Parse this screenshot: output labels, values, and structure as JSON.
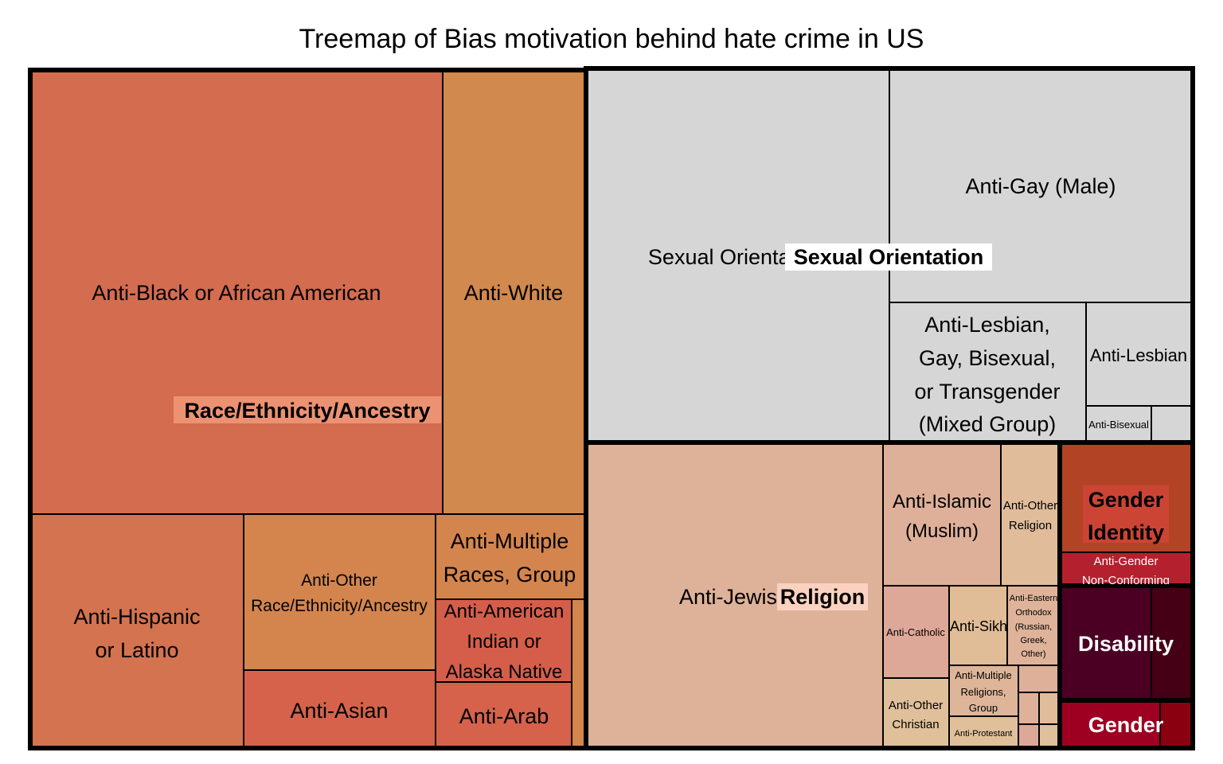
{
  "chart_data": {
    "type": "treemap",
    "title": "Treemap of Bias motivation behind hate crime in US",
    "groups": [
      {
        "name": "Race/Ethnicity/Ancestry",
        "label_color": "#ec9272",
        "children": [
          {
            "name": "Anti-Black or African American",
            "color": "#d46c50"
          },
          {
            "name": "Anti-White",
            "color": "#d1894d"
          },
          {
            "name": "Anti-Hispanic or Latino",
            "color": "#d47350"
          },
          {
            "name": "Anti-Other Race/Ethnicity/Ancestry",
            "color": "#d4854e"
          },
          {
            "name": "Anti-Multiple Races, Group",
            "color": "#d4854e"
          },
          {
            "name": "Anti-Asian",
            "color": "#d6624c"
          },
          {
            "name": "Anti-American Indian or Alaska Native",
            "color": "#d55e4a"
          },
          {
            "name": "Anti-Arab",
            "color": "#d6624c"
          }
        ]
      },
      {
        "name": "Sexual Orientation",
        "label_color": "#ffffff",
        "children": [
          {
            "name": "Sexual Orientation",
            "color": "#d6d6d6"
          },
          {
            "name": "Anti-Gay (Male)",
            "color": "#d6d6d6"
          },
          {
            "name": "Anti-Lesbian, Gay, Bisexual, or Transgender (Mixed Group)",
            "color": "#d6d6d6"
          },
          {
            "name": "Anti-Lesbian",
            "color": "#d6d6d6"
          },
          {
            "name": "Anti-Bisexual",
            "color": "#d6d6d6"
          }
        ]
      },
      {
        "name": "Religion",
        "label_color": "#fbd2c0",
        "children": [
          {
            "name": "Anti-Jewish",
            "color": "#deb299"
          },
          {
            "name": "Anti-Islamic (Muslim)",
            "color": "#deb099"
          },
          {
            "name": "Anti-Other Religion",
            "color": "#e0bc9a"
          },
          {
            "name": "Anti-Catholic",
            "color": "#dea899"
          },
          {
            "name": "Anti-Sikh",
            "color": "#e0bc97"
          },
          {
            "name": "Anti-Eastern Orthodox (Russian, Greek, Other)",
            "color": "#deb399"
          },
          {
            "name": "Anti-Other Christian",
            "color": "#e0c09a"
          },
          {
            "name": "Anti-Multiple Religions, Group",
            "color": "#deb599"
          },
          {
            "name": "Anti-Protestant",
            "color": "#e0c09a"
          }
        ]
      },
      {
        "name": "Gender Identity",
        "label_color": "#cc4434",
        "children": [
          {
            "name": "Gender Identity",
            "color": "#b34325"
          },
          {
            "name": "Anti-Gender Non-Conforming",
            "color": "#b5202e"
          }
        ]
      },
      {
        "name": "Disability",
        "label_color": "#4a0023",
        "children": [
          {
            "name": "Disability",
            "color": "#4b0023"
          }
        ]
      },
      {
        "name": "Gender",
        "label_color": "#9d0020",
        "children": [
          {
            "name": "Gender",
            "color": "#9d0020"
          }
        ]
      }
    ]
  },
  "labels": {
    "title": "Treemap of Bias motivation behind hate crime in US",
    "anti_black": "Anti-Black or African American",
    "anti_white": "Anti-White",
    "race_group": "Race/Ethnicity/Ancestry",
    "anti_hispanic_1": "Anti-Hispanic",
    "anti_hispanic_2": "or Latino",
    "anti_other_race_1": "Anti-Other",
    "anti_other_race_2": "Race/Ethnicity/Ancestry",
    "anti_multiple_races_1": "Anti-Multiple",
    "anti_multiple_races_2": "Races, Group",
    "anti_asian": "Anti-Asian",
    "anti_am_indian_1": "Anti-American",
    "anti_am_indian_2": "Indian or",
    "anti_am_indian_3": "Alaska Native",
    "anti_arab": "Anti-Arab",
    "sexual_orientation_leaf": "Sexual Orientation",
    "sexual_orientation_group": "Sexual Orientation",
    "anti_gay_male": "Anti-Gay (Male)",
    "anti_lgbt_1": "Anti-Lesbian,",
    "anti_lgbt_2": "Gay, Bisexual,",
    "anti_lgbt_3": "or Transgender",
    "anti_lgbt_4": "(Mixed Group)",
    "anti_lesbian": "Anti-Lesbian",
    "anti_bisexual": "Anti-Bisexual",
    "anti_jewish": "Anti-Jewish",
    "religion_group": "Religion",
    "anti_islamic_1": "Anti-Islamic",
    "anti_islamic_2": "(Muslim)",
    "anti_other_religion_1": "Anti-Other",
    "anti_other_religion_2": "Religion",
    "anti_catholic": "Anti-Catholic",
    "anti_sikh": "Anti-Sikh",
    "anti_eastern_1": "Anti-Eastern",
    "anti_eastern_2": "Orthodox",
    "anti_eastern_3": "(Russian,",
    "anti_eastern_4": "Greek,",
    "anti_eastern_5": "Other)",
    "anti_multi_rel_1": "Anti-Multiple",
    "anti_multi_rel_2": "Religions,",
    "anti_multi_rel_3": "Group",
    "anti_other_christian_1": "Anti-Other",
    "anti_other_christian_2": "Christian",
    "anti_protestant": "Anti-Protestant",
    "gender_identity_1": "Gender",
    "gender_identity_2": "Identity",
    "anti_gender_nc_1": "Anti-Gender",
    "anti_gender_nc_2": "Non-Conforming",
    "disability": "Disability",
    "gender": "Gender"
  }
}
